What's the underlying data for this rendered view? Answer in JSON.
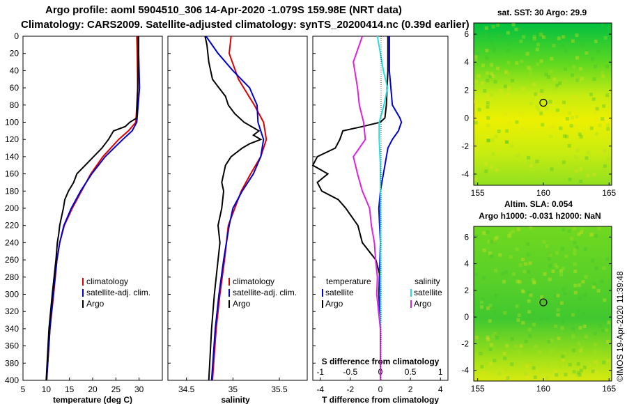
{
  "title": {
    "line1": "Argo profile: aoml 5904510_306 14-Apr-2020 -1.079S 159.98E (NRT data)",
    "line2": "Climatology: CARS2009. Satellite-adjusted climatology: synTS_20200414.nc (0.39d earlier)"
  },
  "depth_ticks": [
    "0",
    "20",
    "40",
    "60",
    "80",
    "100",
    "120",
    "140",
    "160",
    "180",
    "200",
    "220",
    "240",
    "260",
    "280",
    "300",
    "320",
    "340",
    "360",
    "380",
    "400"
  ],
  "colors": {
    "climatology": "#e00000",
    "satellite": "#0000d0",
    "argo": "#000000",
    "argo_salinity_diff": "#e020e0",
    "satellite_salinity_diff": "#20e0e0"
  },
  "chart_data": [
    {
      "type": "line",
      "name": "temperature",
      "xlabel": "temperature (deg C)",
      "xlim": [
        5,
        35
      ],
      "ylim": [
        0,
        400
      ],
      "xticks": [
        "5",
        "10",
        "15",
        "20",
        "25",
        "30"
      ],
      "legend": [
        "climatology",
        "satellite-adj. clim.",
        "Argo"
      ],
      "series": [
        {
          "name": "climatology",
          "color": "#e00000",
          "depth": [
            0,
            20,
            60,
            100,
            110,
            120,
            140,
            160,
            180,
            200,
            220,
            240,
            260,
            300,
            340,
            400
          ],
          "values": [
            29.5,
            29.6,
            29.7,
            29.3,
            27.7,
            25.6,
            22.2,
            19.6,
            17.6,
            15.6,
            13.9,
            12.9,
            12.3,
            11.6,
            10.8,
            10.1
          ]
        },
        {
          "name": "satellite-adj. clim.",
          "color": "#0000d0",
          "depth": [
            0,
            20,
            60,
            100,
            110,
            120,
            140,
            160,
            180,
            200,
            220,
            240,
            260,
            300,
            340,
            400
          ],
          "values": [
            29.9,
            29.9,
            30.1,
            29.5,
            28.5,
            26.5,
            22.7,
            19.8,
            17.4,
            15.4,
            13.8,
            12.9,
            12.3,
            11.5,
            10.8,
            10.1
          ]
        },
        {
          "name": "Argo",
          "color": "#000000",
          "depth": [
            0,
            20,
            60,
            95,
            100,
            105,
            110,
            120,
            130,
            140,
            150,
            160,
            170,
            180,
            190,
            200,
            210,
            220,
            230,
            240,
            260,
            300,
            340,
            400
          ],
          "values": [
            29.8,
            29.8,
            29.7,
            29.5,
            28.0,
            27.0,
            24.5,
            23.4,
            22.0,
            20.2,
            18.4,
            16.6,
            15.9,
            14.8,
            14.0,
            13.7,
            13.3,
            12.9,
            12.7,
            12.4,
            12.1,
            11.3,
            10.6,
            10.0
          ]
        }
      ]
    },
    {
      "type": "line",
      "name": "salinity",
      "xlabel": "salinity",
      "xlim": [
        34.3,
        35.8
      ],
      "ylim": [
        0,
        400
      ],
      "xticks": [
        "34.5",
        "35",
        "35.5"
      ],
      "legend": [
        "climatology",
        "satellite-adj. clim.",
        "Argo"
      ],
      "series": [
        {
          "name": "climatology",
          "color": "#e00000",
          "depth": [
            0,
            20,
            50,
            80,
            100,
            120,
            140,
            160,
            180,
            200,
            220,
            240,
            260,
            300,
            340,
            400
          ],
          "values": [
            34.98,
            34.96,
            35.06,
            35.23,
            35.33,
            35.36,
            35.3,
            35.19,
            35.09,
            35.02,
            34.95,
            34.93,
            34.91,
            34.86,
            34.82,
            34.78
          ]
        },
        {
          "name": "satellite-adj. clim.",
          "color": "#0000d0",
          "depth": [
            0,
            20,
            40,
            60,
            80,
            100,
            120,
            140,
            160,
            180,
            200,
            220,
            240,
            260,
            300,
            340,
            400
          ],
          "values": [
            34.71,
            34.84,
            35.0,
            35.18,
            35.26,
            35.27,
            35.33,
            35.3,
            35.22,
            35.1,
            35.0,
            34.96,
            34.93,
            34.9,
            34.85,
            34.81,
            34.77
          ]
        },
        {
          "name": "Argo",
          "color": "#000000",
          "depth": [
            0,
            10,
            30,
            50,
            60,
            70,
            80,
            90,
            100,
            110,
            115,
            120,
            125,
            130,
            140,
            150,
            160,
            170,
            180,
            200,
            220,
            240,
            260,
            300,
            340,
            400
          ],
          "values": [
            34.7,
            34.72,
            34.74,
            34.78,
            34.85,
            34.92,
            34.95,
            35.02,
            35.12,
            35.28,
            35.22,
            35.3,
            35.18,
            35.1,
            34.98,
            34.92,
            34.9,
            34.88,
            34.9,
            34.88,
            34.84,
            34.86,
            34.84,
            34.8,
            34.77,
            34.74
          ]
        }
      ]
    },
    {
      "type": "line",
      "name": "differences",
      "xlabel": "T difference from climatology",
      "xlabel_top": "S difference from climatology",
      "xlim": [
        -4.5,
        4.5
      ],
      "xticks": [
        "-4",
        "-2",
        "0",
        "2",
        "4"
      ],
      "top_ticks": [
        "-1",
        "-0.5",
        "0",
        "0.5",
        "1"
      ],
      "top_xlim": [
        -1.125,
        1.125
      ],
      "ylim": [
        0,
        400
      ],
      "legend_headers": [
        "temperature",
        "salinity"
      ],
      "legend_left": [
        "satellite",
        "Argo"
      ],
      "legend_right": [
        "satellite",
        "Argo"
      ],
      "series": [
        {
          "name": "satellite T",
          "color": "#0000d0",
          "axis": "T",
          "depth": [
            0,
            40,
            80,
            95,
            100,
            110,
            120,
            130,
            150,
            180,
            200,
            240,
            300,
            340,
            400
          ],
          "values": [
            0.6,
            0.6,
            0.8,
            1.3,
            1.4,
            1.2,
            0.8,
            0.5,
            0.3,
            0.0,
            -0.1,
            0.0,
            -0.1,
            0.0,
            0.0
          ]
        },
        {
          "name": "Argo T",
          "color": "#000000",
          "axis": "T",
          "depth": [
            0,
            40,
            80,
            95,
            100,
            105,
            110,
            120,
            130,
            140,
            150,
            160,
            170,
            180,
            190,
            200,
            220,
            240,
            260,
            280,
            300,
            340,
            400
          ],
          "values": [
            0.5,
            0.5,
            0.4,
            0.3,
            0.0,
            -1.2,
            -2.5,
            -2.7,
            -3.0,
            -4.2,
            -4.5,
            -3.5,
            -4.2,
            -3.9,
            -2.8,
            -2.3,
            -1.5,
            -1.2,
            -0.3,
            0.0,
            0.0,
            0.0,
            0.0
          ]
        },
        {
          "name": "satellite S",
          "color": "#20e0e0",
          "axis": "S",
          "depth": [
            0,
            40,
            60,
            80,
            100,
            120,
            150,
            180,
            200,
            240,
            300,
            340,
            400
          ],
          "values": [
            -0.05,
            0.05,
            0.12,
            0.06,
            -0.02,
            -0.02,
            0.0,
            0.0,
            0.0,
            0.0,
            0.0,
            0.0,
            0.0
          ]
        },
        {
          "name": "Argo S",
          "color": "#e020e0",
          "axis": "S",
          "depth": [
            0,
            30,
            60,
            80,
            100,
            120,
            140,
            160,
            180,
            200,
            220,
            240,
            260,
            280,
            300,
            340,
            400
          ],
          "values": [
            -0.3,
            -0.45,
            -0.38,
            -0.35,
            -0.28,
            -0.25,
            -0.45,
            -0.38,
            -0.3,
            -0.18,
            -0.15,
            -0.1,
            -0.08,
            -0.05,
            -0.06,
            0.0,
            0.0
          ]
        }
      ]
    },
    {
      "type": "heatmap",
      "name": "sst map",
      "title": "sat. SST: 30 Argo: 29.9",
      "xticks": [
        "155",
        "160",
        "165"
      ],
      "yticks": [
        "6",
        "4",
        "2",
        "0",
        "-2",
        "-4"
      ],
      "xlim": [
        154.7,
        165.2
      ],
      "ylim": [
        -4.8,
        6.8
      ],
      "marker": {
        "lon": 160.0,
        "lat": 1.1
      }
    },
    {
      "type": "heatmap",
      "name": "sla map",
      "title_line1": "Altim. SLA: 0.054",
      "title_line2": "Argo h1000: -0.031 h2000: NaN",
      "xticks": [
        "155",
        "160",
        "165"
      ],
      "yticks": [
        "6",
        "4",
        "2",
        "0",
        "-2",
        "-4"
      ],
      "xlim": [
        154.7,
        165.2
      ],
      "ylim": [
        -4.8,
        6.8
      ],
      "marker": {
        "lon": 160.0,
        "lat": 1.1
      }
    }
  ],
  "watermark": "©IMOS 19-Apr-2020 11:39:48"
}
